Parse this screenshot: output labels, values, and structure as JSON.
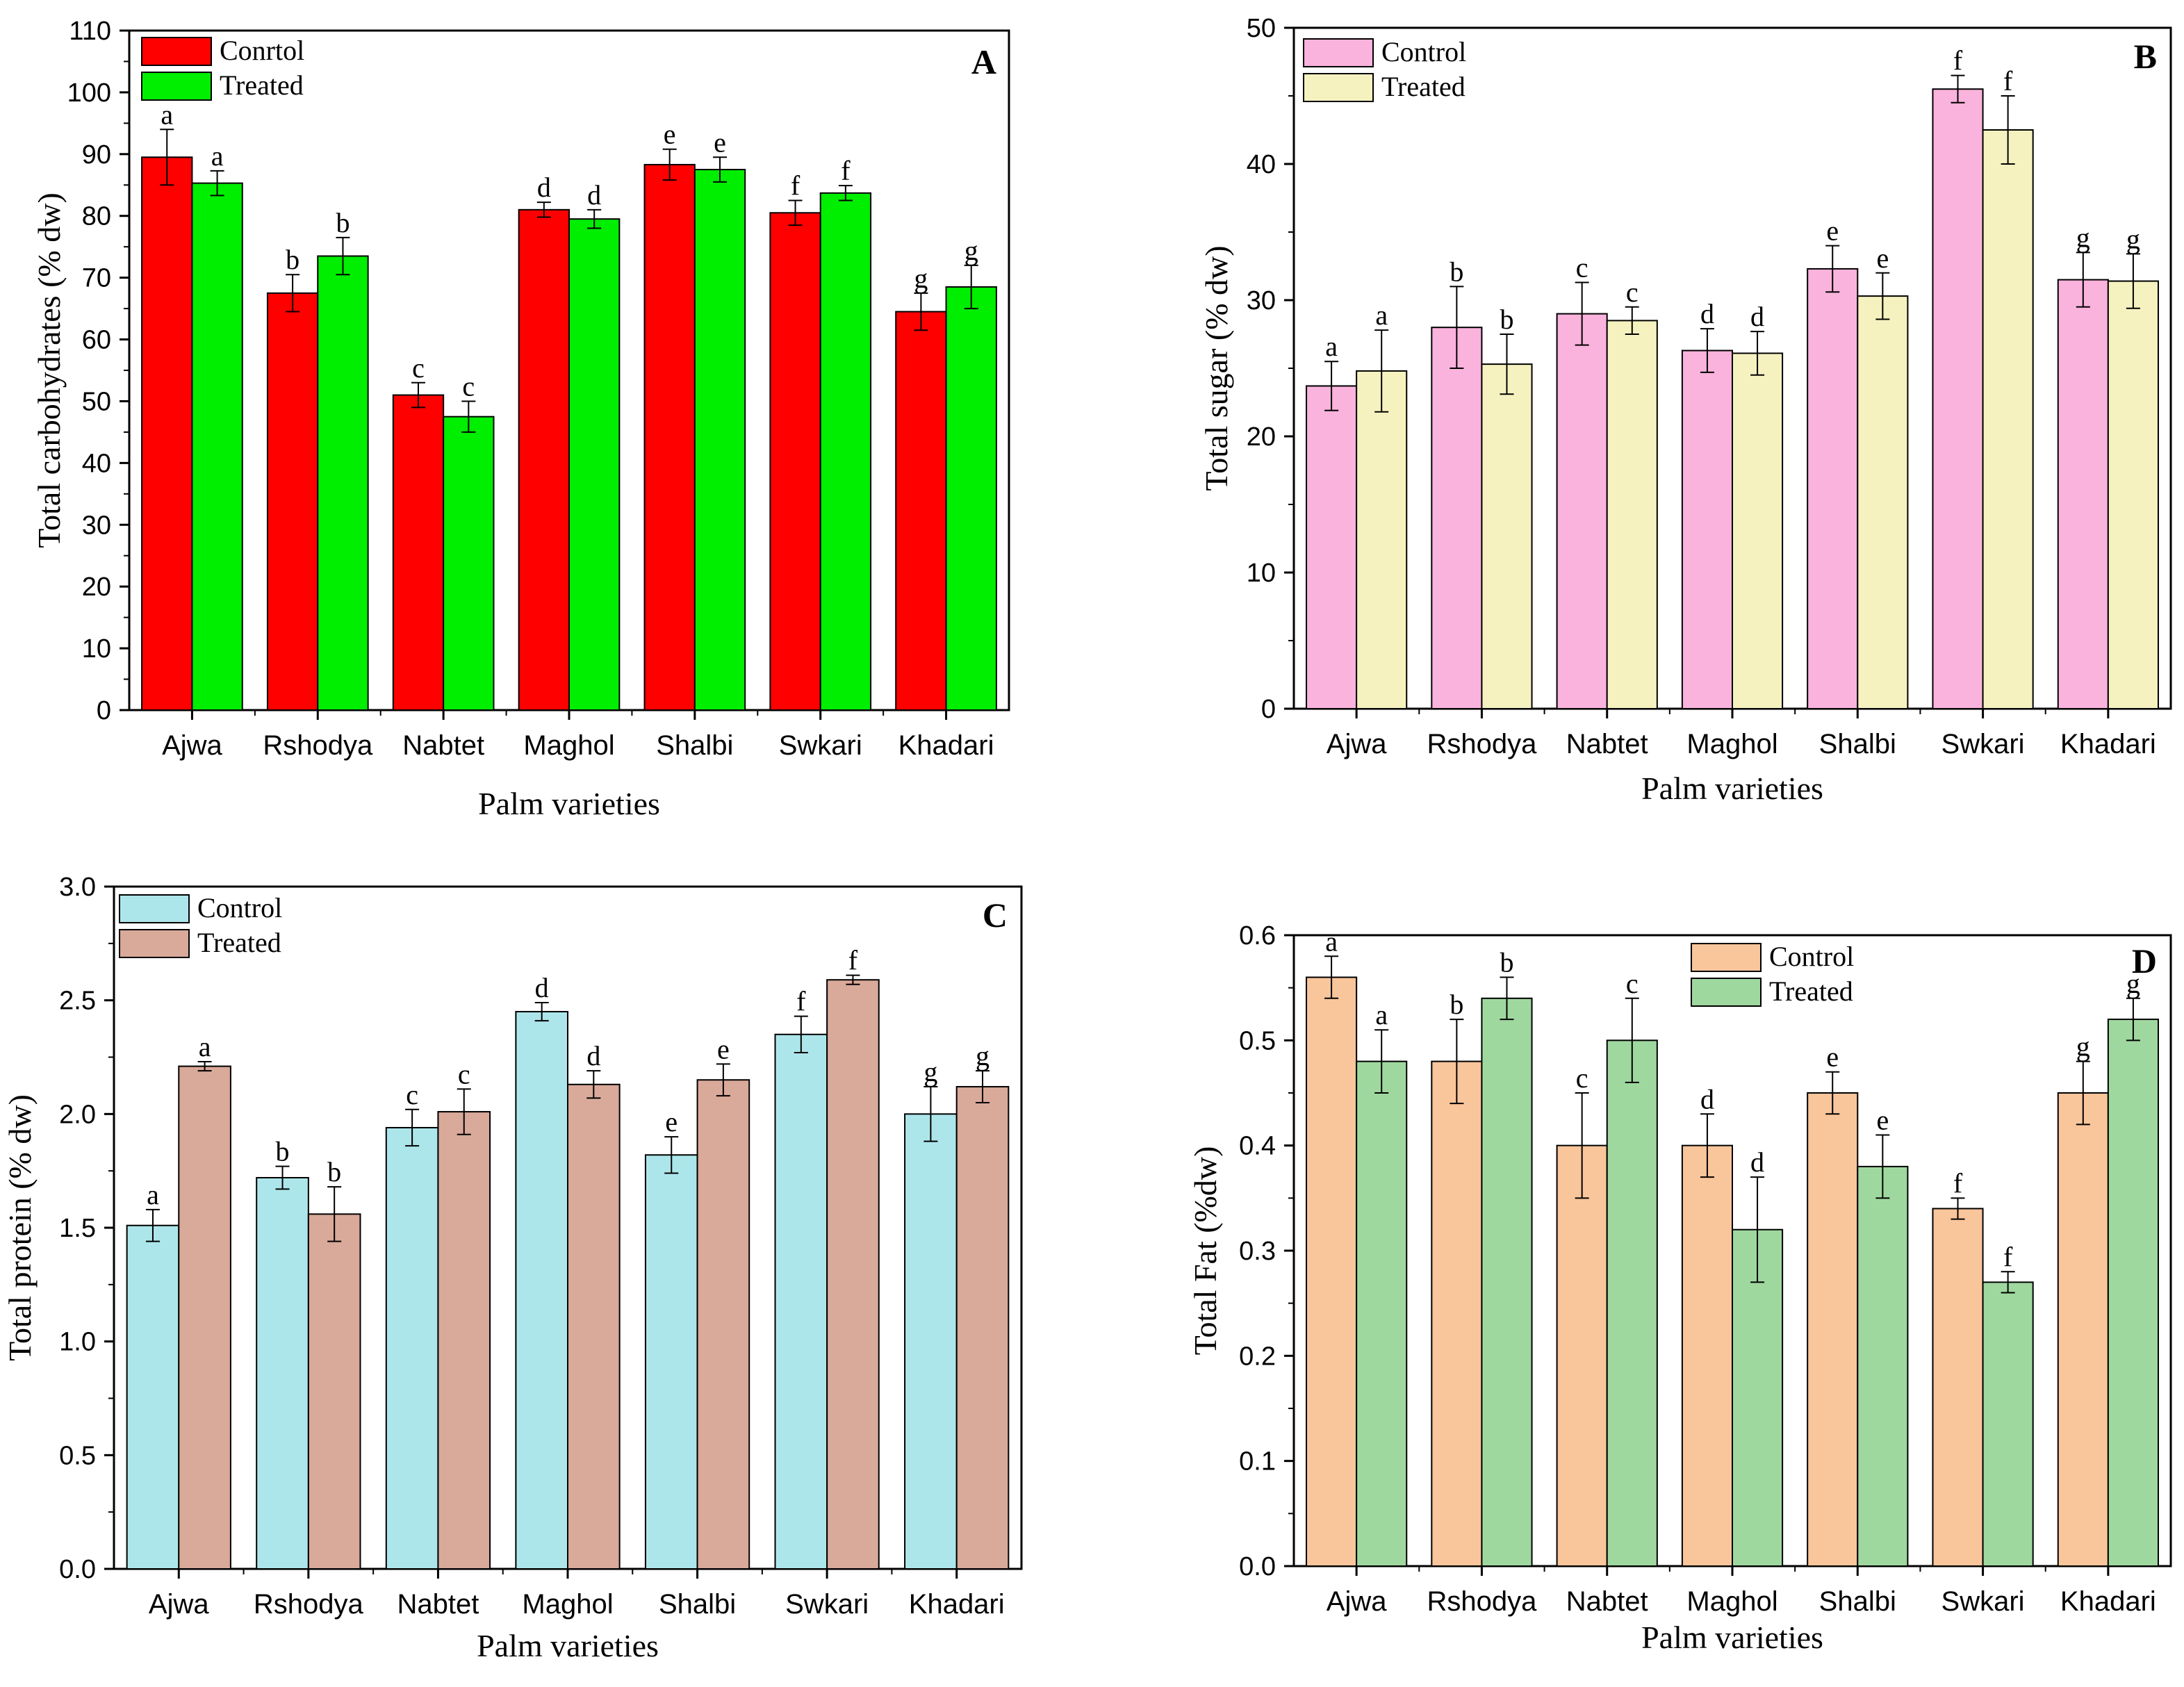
{
  "chart_data": [
    {
      "panel": "A",
      "type": "bar",
      "title": "",
      "xlabel": "Palm varieties",
      "ylabel": "Total carbohydrates (% dw)",
      "categories": [
        "Ajwa",
        "Rshodya",
        "Nabtet",
        "Maghol",
        "Shalbi",
        "Swkari",
        "Khadari"
      ],
      "ylim": [
        0,
        110
      ],
      "yticks": [
        0,
        10,
        20,
        30,
        40,
        50,
        60,
        70,
        80,
        90,
        100,
        110
      ],
      "tick_decimals": 0,
      "legend": "top-left",
      "series": [
        {
          "name": "Conrtol",
          "color": "#ff0000",
          "values": [
            89.5,
            67.5,
            51,
            81,
            88.3,
            80.5,
            64.5
          ],
          "errors": [
            4.5,
            3,
            2,
            1.2,
            2.5,
            2,
            3
          ],
          "letters": [
            "a",
            "b",
            "c",
            "d",
            "e",
            "f",
            "g"
          ]
        },
        {
          "name": "Treated",
          "color": "#00ee00",
          "values": [
            85.3,
            73.5,
            47.5,
            79.5,
            87.5,
            83.7,
            68.5
          ],
          "errors": [
            2,
            3,
            2.5,
            1.5,
            2,
            1.2,
            3.5
          ],
          "letters": [
            "a",
            "b",
            "c",
            "d",
            "e",
            "f",
            "g"
          ]
        }
      ]
    },
    {
      "panel": "B",
      "type": "bar",
      "title": "",
      "xlabel": "Palm varieties",
      "ylabel": "Total sugar (% dw)",
      "categories": [
        "Ajwa",
        "Rshodya",
        "Nabtet",
        "Maghol",
        "Shalbi",
        "Swkari",
        "Khadari"
      ],
      "ylim": [
        0,
        50
      ],
      "yticks": [
        0,
        10,
        20,
        30,
        40,
        50
      ],
      "tick_decimals": 0,
      "legend": "top-left",
      "series": [
        {
          "name": "Control",
          "color": "#f9b3dc",
          "values": [
            23.7,
            28.0,
            29.0,
            26.3,
            32.3,
            45.5,
            31.5
          ],
          "errors": [
            1.8,
            3,
            2.3,
            1.6,
            1.7,
            1,
            2
          ],
          "letters": [
            "a",
            "b",
            "c",
            "d",
            "e",
            "f",
            "g"
          ]
        },
        {
          "name": "Treated",
          "color": "#f5f2c0",
          "values": [
            24.8,
            25.3,
            28.5,
            26.1,
            30.3,
            42.5,
            31.4
          ],
          "errors": [
            3,
            2.2,
            1,
            1.6,
            1.7,
            2.5,
            2
          ],
          "letters": [
            "a",
            "b",
            "c",
            "d",
            "e",
            "f",
            "g"
          ]
        }
      ]
    },
    {
      "panel": "C",
      "type": "bar",
      "title": "",
      "xlabel": "Palm varieties",
      "ylabel": "Total protein (% dw)",
      "categories": [
        "Ajwa",
        "Rshodya",
        "Nabtet",
        "Maghol",
        "Shalbi",
        "Swkari",
        "Khadari"
      ],
      "ylim": [
        0,
        3.0
      ],
      "yticks": [
        0,
        0.5,
        1.0,
        1.5,
        2.0,
        2.5,
        3.0
      ],
      "tick_decimals": 1,
      "legend": "top-left",
      "series": [
        {
          "name": "Control",
          "color": "#ade6ea",
          "values": [
            1.51,
            1.72,
            1.94,
            2.45,
            1.82,
            2.35,
            2.0
          ],
          "errors": [
            0.07,
            0.05,
            0.08,
            0.04,
            0.08,
            0.08,
            0.12
          ],
          "letters": [
            "a",
            "b",
            "c",
            "d",
            "e",
            "f",
            "g"
          ]
        },
        {
          "name": "Treated",
          "color": "#d9a99a",
          "values": [
            2.21,
            1.56,
            2.01,
            2.13,
            2.15,
            2.59,
            2.12
          ],
          "errors": [
            0.02,
            0.12,
            0.1,
            0.06,
            0.07,
            0.02,
            0.07
          ],
          "letters": [
            "a",
            "b",
            "c",
            "d",
            "e",
            "f",
            "g"
          ]
        }
      ]
    },
    {
      "panel": "D",
      "type": "bar",
      "title": "",
      "xlabel": "Palm varieties",
      "ylabel": "Total Fat (%dw)",
      "categories": [
        "Ajwa",
        "Rshodya",
        "Nabtet",
        "Maghol",
        "Shalbi",
        "Swkari",
        "Khadari"
      ],
      "ylim": [
        0,
        0.6
      ],
      "yticks": [
        0,
        0.1,
        0.2,
        0.3,
        0.4,
        0.5,
        0.6
      ],
      "tick_decimals": 1,
      "legend": "top-center",
      "series": [
        {
          "name": "Control",
          "color": "#f9c59b",
          "values": [
            0.56,
            0.48,
            0.4,
            0.4,
            0.45,
            0.34,
            0.45
          ],
          "errors": [
            0.02,
            0.04,
            0.05,
            0.03,
            0.02,
            0.01,
            0.03
          ],
          "letters": [
            "a",
            "b",
            "c",
            "d",
            "e",
            "f",
            "g"
          ]
        },
        {
          "name": "Treated",
          "color": "#9fd89f",
          "values": [
            0.48,
            0.54,
            0.5,
            0.32,
            0.38,
            0.27,
            0.52
          ],
          "errors": [
            0.03,
            0.02,
            0.04,
            0.05,
            0.03,
            0.01,
            0.02
          ],
          "letters": [
            "a",
            "b",
            "c",
            "d",
            "e",
            "f",
            "g"
          ]
        }
      ]
    }
  ]
}
